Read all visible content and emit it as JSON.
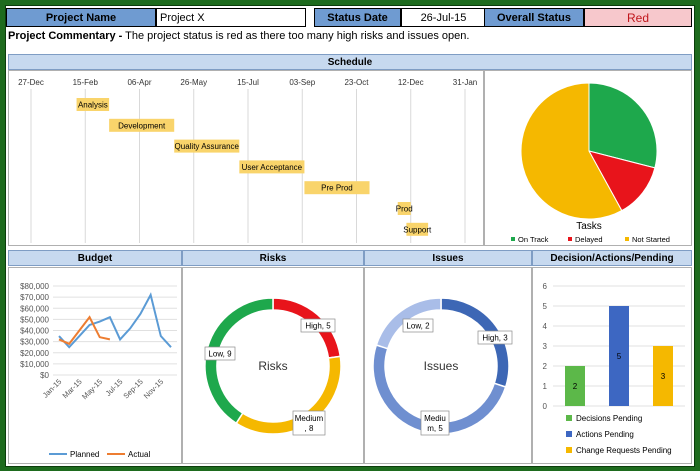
{
  "header": {
    "project_name_label": "Project Name",
    "project_name_value": "Project X",
    "status_date_label": "Status Date",
    "status_date_value": "26-Jul-15",
    "overall_status_label": "Overall Status",
    "overall_status_value": "Red"
  },
  "commentary": {
    "label": "Project Commentary -",
    "text": " The project status is red as there too many high risks and issues open."
  },
  "schedule": {
    "title": "Schedule",
    "date_ticks": [
      "27-Dec",
      "15-Feb",
      "06-Apr",
      "26-May",
      "15-Jul",
      "03-Sep",
      "23-Oct",
      "12-Dec",
      "31-Jan"
    ],
    "tasks": [
      {
        "label": "Analysis",
        "start": "2015-02-07",
        "end": "2015-03-09"
      },
      {
        "label": "Development",
        "start": "2015-03-09",
        "end": "2015-05-08"
      },
      {
        "label": "Quality Assurance",
        "start": "2015-05-08",
        "end": "2015-07-07"
      },
      {
        "label": "User Acceptance",
        "start": "2015-07-07",
        "end": "2015-09-05"
      },
      {
        "label": "Pre Prod",
        "start": "2015-09-05",
        "end": "2015-11-04"
      },
      {
        "label": "Prod",
        "start": "2015-11-30",
        "end": "2015-12-12"
      },
      {
        "label": "Support",
        "start": "2015-12-08",
        "end": "2015-12-28"
      }
    ]
  },
  "tasks_chart": {
    "type": "pie",
    "title": "Tasks",
    "slices": [
      {
        "name": "On Track",
        "value": 29,
        "color": "#1ea84c"
      },
      {
        "name": "Delayed",
        "value": 13,
        "color": "#e8141b"
      },
      {
        "name": "Not Started",
        "value": 58,
        "color": "#f5b800"
      }
    ]
  },
  "budget": {
    "title": "Budget",
    "type": "line",
    "y_ticks": [
      "$80,000",
      "$70,000",
      "$60,000",
      "$50,000",
      "$40,000",
      "$30,000",
      "$20,000",
      "$10,000",
      "$0"
    ],
    "ylim": [
      0,
      80000
    ],
    "x_labels": [
      "Jan-15",
      "Mar-15",
      "May-15",
      "Jul-15",
      "Sep-15",
      "Nov-15"
    ],
    "planned": [
      35000,
      25000,
      35000,
      45000,
      48000,
      52000,
      32000,
      42000,
      55000,
      72000,
      35000,
      25000
    ],
    "actual": [
      32000,
      28000,
      40000,
      52000,
      34000,
      32000
    ],
    "legend_planned": "Planned",
    "legend_actual": "Actual",
    "planned_color": "#5b9bd5",
    "actual_color": "#ed7d31"
  },
  "risks": {
    "title": "Risks",
    "center_label": "Risks",
    "slices": [
      {
        "name": "High",
        "value": 5,
        "label": "High, 5",
        "color": "#e8141b"
      },
      {
        "name": "Medium",
        "value": 8,
        "label": "Medium , 8",
        "color": "#f5b800"
      },
      {
        "name": "Low",
        "value": 9,
        "label": "Low, 9",
        "color": "#1ea84c"
      }
    ]
  },
  "issues": {
    "title": "Issues",
    "center_label": "Issues",
    "slices": [
      {
        "name": "High",
        "value": 3,
        "label": "High, 3",
        "color": "#3d67b5"
      },
      {
        "name": "Medium",
        "value": 5,
        "label": "Mediu m, 5",
        "color": "#6f8fd0"
      },
      {
        "name": "Low",
        "value": 2,
        "label": "Low, 2",
        "color": "#a9bde8"
      }
    ]
  },
  "decisions": {
    "title": "Decision/Actions/Pending",
    "type": "bar",
    "y_ticks": [
      "6",
      "5",
      "4",
      "3",
      "2",
      "1",
      "0"
    ],
    "ylim": [
      0,
      6
    ],
    "bars": [
      {
        "name": "Decisions Pending",
        "value": 2,
        "label": "2",
        "color": "#5cb849"
      },
      {
        "name": "Actions Pending",
        "value": 5,
        "label": "5",
        "color": "#3d67c2"
      },
      {
        "name": "Change Requests Pending",
        "value": 3,
        "label": "3",
        "color": "#f5b800"
      }
    ]
  }
}
